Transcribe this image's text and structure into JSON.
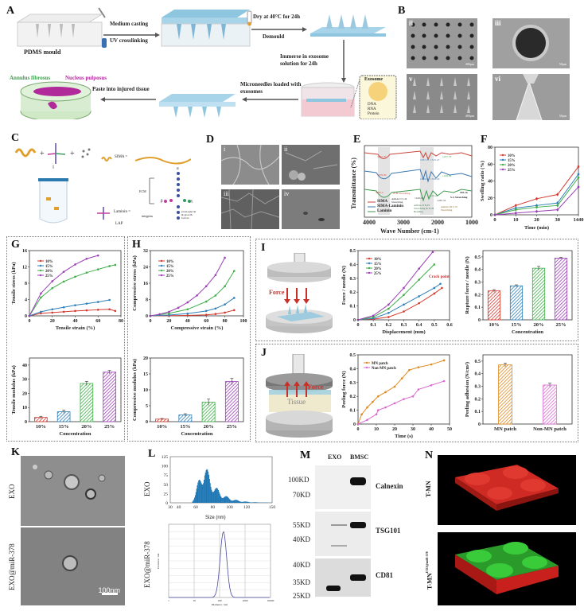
{
  "panels": {
    "A": {
      "label": "A",
      "steps": {
        "mould": "PDMS mould",
        "casting": "Medium casting",
        "crosslink": "UV crosslinking",
        "dry": "Dry at 40°C for 24h",
        "demould": "Demould",
        "immerse": "Immerse in exosome solution for 24h",
        "loaded": "Microneedles loaded with exosomes",
        "paste": "Paste into injured tissue",
        "annulus": "Annulus fibrosus",
        "nucleus": "Nucleus pulposus"
      },
      "exosome_box": {
        "title": "Exosome",
        "legend": [
          "DNA",
          "RNA",
          "Protein"
        ]
      }
    },
    "B": {
      "label": "B",
      "images": [
        "ii",
        "iii",
        "v",
        "vi"
      ],
      "scales": [
        "400μm",
        "50μm",
        "400μm",
        "50μm"
      ]
    },
    "C": {
      "label": "C",
      "sima": "SIMA =",
      "laminin": "Laminin =",
      "lap": "LAP",
      "ecm": "ECM",
      "integrins": "integrins",
      "pg": "proteoglycan & growth factors",
      "alpha": "α",
      "beta": "β",
      "gamma": "γ",
      "equals": "||"
    },
    "D": {
      "label": "D",
      "images": [
        "i",
        "ii",
        "iii",
        "iv"
      ]
    },
    "E": {
      "label": "E",
      "xlabel": "Wave Number (cm-1)",
      "ylabel": "Transmittance (%)",
      "xticks": [
        "4000",
        "3000",
        "2000",
        "1000"
      ],
      "legend": [
        "SIMA",
        "SIMA-Laminin",
        "Laminin"
      ],
      "peaks": [
        "3272.20",
        "3279.50",
        "3265.2",
        "1637.23",
        "1515.27",
        "1227.70",
        "1639.02",
        "1538.29",
        "1229.04",
        "1648.06",
        "1529.28",
        "1280.34",
        "995.16"
      ],
      "annotations": [
        "N-H Stretching",
        "Amide I C=O Stretching",
        "Amide II N-H Stretching & N-H Bending",
        "Amide III C-N Stretching",
        "S-S Stretching"
      ]
    },
    "F": {
      "label": "F",
      "xlabel": "Time (min)",
      "ylabel": "Swelling ratio (%)"
    },
    "G": {
      "label": "G"
    },
    "H": {
      "label": "H"
    },
    "I": {
      "label": "I",
      "force": "Force",
      "crack": "Crack point"
    },
    "J": {
      "label": "J",
      "force": "Force",
      "tissue": "Tissue"
    },
    "K": {
      "label": "K",
      "rows": [
        "EXO",
        "EXO@miR-378"
      ],
      "scale": "100nm"
    },
    "L": {
      "label": "L",
      "rows": [
        "EXO",
        "EXO@miR-378"
      ],
      "top_xlabel": "Size (nm)",
      "top_xticks": [
        "30",
        "40",
        "60",
        "80",
        "100",
        "120",
        "150"
      ],
      "top_yticks": [
        "0",
        "25",
        "50",
        "75",
        "100",
        "125"
      ],
      "bottom_xlabel": "Diameter / nm",
      "bottom_ylabel": "Particles / mL",
      "bottom_xticks": [
        "1",
        "10",
        "100",
        "1000",
        "10000"
      ]
    },
    "M": {
      "label": "M",
      "lanes": [
        "EXO",
        "BMSC"
      ],
      "blots": [
        {
          "name": "Calnexin",
          "markers": [
            "100KD",
            "70KD"
          ]
        },
        {
          "name": "TSG101",
          "markers": [
            "55KD",
            "40KD"
          ]
        },
        {
          "name": "CD81",
          "markers": [
            "40KD",
            "35KD",
            "25KD"
          ]
        }
      ]
    },
    "N": {
      "label": "N",
      "rows": [
        "T-MN",
        "T-MN"
      ],
      "superscript": "EXO@miR-378"
    }
  },
  "colors": {
    "c10": "#d43a2f",
    "c15": "#2f7fb8",
    "c20": "#3fae49",
    "c25": "#9b3fb5",
    "mn": "#e08a1e",
    "nonmn": "#d96bd0",
    "hist": "#1f77b4"
  },
  "chart_data": [
    {
      "id": "F",
      "type": "line",
      "title": "",
      "xlabel": "Time (min)",
      "ylabel": "Swelling ratio (%)",
      "categories": [
        "0",
        "10",
        "20",
        "30",
        "1440"
      ],
      "ylim": [
        0,
        80
      ],
      "yticks": [
        0,
        20,
        40,
        60,
        80
      ],
      "series": [
        {
          "name": "10%",
          "values": [
            0,
            11,
            19,
            24,
            57
          ]
        },
        {
          "name": "15%",
          "values": [
            0,
            8,
            11,
            14,
            48
          ]
        },
        {
          "name": "20%",
          "values": [
            0,
            6,
            9,
            11,
            44
          ]
        },
        {
          "name": "25%",
          "values": [
            0,
            2,
            4,
            6,
            33
          ]
        }
      ],
      "legend": "top-left"
    },
    {
      "id": "G-top",
      "type": "line",
      "xlabel": "Tensile strain (%)",
      "ylabel": "Tensile stress (kPa)",
      "xlim": [
        0,
        80
      ],
      "ylim": [
        0,
        16
      ],
      "xticks": [
        0,
        20,
        40,
        60,
        80
      ],
      "yticks": [
        0,
        4,
        8,
        12,
        16
      ],
      "series": [
        {
          "name": "10%",
          "x": [
            0,
            10,
            20,
            30,
            40,
            50,
            60,
            70,
            75
          ],
          "values": [
            0,
            0.6,
            0.8,
            1.0,
            1.2,
            1.35,
            1.5,
            1.6,
            1.2
          ]
        },
        {
          "name": "15%",
          "x": [
            0,
            10,
            20,
            30,
            40,
            50,
            60,
            70
          ],
          "values": [
            0,
            1.0,
            1.6,
            2.1,
            2.6,
            3.0,
            3.4,
            3.9
          ]
        },
        {
          "name": "20%",
          "x": [
            0,
            10,
            20,
            30,
            40,
            50,
            60,
            70,
            75
          ],
          "values": [
            0,
            4.5,
            6.8,
            8.4,
            9.6,
            10.6,
            11.4,
            12.2,
            12.5
          ]
        },
        {
          "name": "25%",
          "x": [
            0,
            10,
            20,
            30,
            40,
            50,
            60
          ],
          "values": [
            0,
            5.5,
            8.5,
            10.8,
            12.6,
            14.0,
            14.8
          ]
        }
      ],
      "legend": "top-left"
    },
    {
      "id": "G-bottom",
      "type": "bar",
      "xlabel": "Concentration",
      "ylabel": "Tensile modulus (kPa)",
      "categories": [
        "10%",
        "15%",
        "20%",
        "25%"
      ],
      "values": [
        3,
        7,
        27,
        35
      ],
      "errors": [
        0.8,
        1.2,
        1.5,
        1.2
      ],
      "ylim": [
        0,
        45
      ],
      "yticks": [
        0,
        10,
        20,
        30,
        40
      ]
    },
    {
      "id": "H-top",
      "type": "line",
      "xlabel": "Compressive strain (%)",
      "ylabel": "Compressive stress (kPa)",
      "xlim": [
        0,
        100
      ],
      "ylim": [
        0,
        32
      ],
      "xticks": [
        0,
        20,
        40,
        60,
        80,
        100
      ],
      "yticks": [
        0,
        8,
        16,
        24,
        32
      ],
      "series": [
        {
          "name": "10%",
          "x": [
            0,
            20,
            40,
            60,
            70,
            80,
            90
          ],
          "values": [
            0,
            0.1,
            0.2,
            0.5,
            0.9,
            1.6,
            2.8
          ]
        },
        {
          "name": "15%",
          "x": [
            0,
            20,
            40,
            60,
            70,
            80,
            90
          ],
          "values": [
            0,
            0.4,
            1.1,
            2.4,
            3.6,
            5.6,
            8.8
          ]
        },
        {
          "name": "20%",
          "x": [
            0,
            20,
            40,
            60,
            70,
            80,
            90
          ],
          "values": [
            0,
            1.2,
            3.2,
            7.0,
            10.0,
            14.5,
            22.0
          ]
        },
        {
          "name": "25%",
          "x": [
            0,
            10,
            20,
            30,
            40,
            50,
            60,
            70,
            80
          ],
          "values": [
            0,
            0.8,
            2.0,
            4.0,
            6.6,
            10.0,
            14.5,
            20.0,
            28.5
          ]
        }
      ],
      "legend": "top-left"
    },
    {
      "id": "H-bottom",
      "type": "bar",
      "xlabel": "Concentration",
      "ylabel": "Compressive modulus (kPa)",
      "categories": [
        "10%",
        "15%",
        "20%",
        "25%"
      ],
      "values": [
        0.8,
        2.1,
        6.1,
        12.6
      ],
      "errors": [
        0.2,
        0.4,
        1.0,
        1.0
      ],
      "ylim": [
        0,
        20
      ],
      "yticks": [
        0,
        5,
        10,
        15,
        20
      ]
    },
    {
      "id": "I-line",
      "type": "line",
      "xlabel": "Displacement (mm)",
      "ylabel": "Force / needle (N)",
      "xlim": [
        0,
        0.6
      ],
      "ylim": [
        0,
        0.5
      ],
      "xticks": [
        0.0,
        0.1,
        0.2,
        0.3,
        0.4,
        0.5,
        0.6
      ],
      "yticks": [
        0.0,
        0.1,
        0.2,
        0.3,
        0.4,
        0.5
      ],
      "series": [
        {
          "name": "10%",
          "x": [
            0,
            0.1,
            0.2,
            0.3,
            0.4,
            0.5,
            0.55
          ],
          "values": [
            0,
            0.005,
            0.02,
            0.06,
            0.12,
            0.19,
            0.23
          ]
        },
        {
          "name": "15%",
          "x": [
            0,
            0.1,
            0.2,
            0.3,
            0.4,
            0.5,
            0.54
          ],
          "values": [
            0,
            0.01,
            0.05,
            0.11,
            0.17,
            0.23,
            0.26
          ]
        },
        {
          "name": "20%",
          "x": [
            0,
            0.1,
            0.2,
            0.3,
            0.4,
            0.5
          ],
          "values": [
            0,
            0.02,
            0.08,
            0.18,
            0.29,
            0.4
          ]
        },
        {
          "name": "25%",
          "x": [
            0,
            0.1,
            0.2,
            0.3,
            0.4,
            0.49
          ],
          "values": [
            0,
            0.03,
            0.11,
            0.23,
            0.37,
            0.49
          ]
        }
      ],
      "legend": "top-left"
    },
    {
      "id": "I-bar",
      "type": "bar",
      "xlabel": "Concentration",
      "ylabel": "Rupture force / needle (N)",
      "categories": [
        "10%",
        "15%",
        "20%",
        "25%"
      ],
      "values": [
        0.23,
        0.27,
        0.41,
        0.49
      ],
      "errors": [
        0.01,
        0.008,
        0.015,
        0.006
      ],
      "ylim": [
        0,
        0.55
      ],
      "yticks": [
        0.0,
        0.1,
        0.2,
        0.3,
        0.4,
        0.5
      ]
    },
    {
      "id": "J-line",
      "type": "line",
      "xlabel": "Time (s)",
      "ylabel": "Peeling force (N)",
      "xlim": [
        0,
        50
      ],
      "ylim": [
        0,
        0.5
      ],
      "xticks": [
        0,
        10,
        20,
        30,
        40,
        50
      ],
      "yticks": [
        0.0,
        0.1,
        0.2,
        0.3,
        0.4,
        0.5
      ],
      "series": [
        {
          "name": "MN patch",
          "x": [
            0,
            2,
            5,
            8,
            11,
            15,
            20,
            24,
            28,
            33,
            40,
            47
          ],
          "values": [
            0,
            0.07,
            0.12,
            0.16,
            0.2,
            0.23,
            0.27,
            0.33,
            0.39,
            0.41,
            0.43,
            0.46
          ]
        },
        {
          "name": "Non-MN patch",
          "x": [
            0,
            5,
            10,
            11,
            15,
            20,
            25,
            30,
            33,
            40,
            47
          ],
          "values": [
            0,
            0.03,
            0.07,
            0.1,
            0.12,
            0.15,
            0.18,
            0.2,
            0.25,
            0.28,
            0.31
          ]
        }
      ],
      "legend": "top-left"
    },
    {
      "id": "J-bar",
      "type": "bar",
      "xlabel": "",
      "ylabel": "Peeling adhesion (N/cm²)",
      "categories": [
        "MN patch",
        "Non-MN patch"
      ],
      "values": [
        0.47,
        0.31
      ],
      "errors": [
        0.015,
        0.015
      ],
      "ylim": [
        0,
        0.55
      ],
      "yticks": [
        0.0,
        0.1,
        0.2,
        0.3,
        0.4,
        0.5
      ]
    }
  ]
}
